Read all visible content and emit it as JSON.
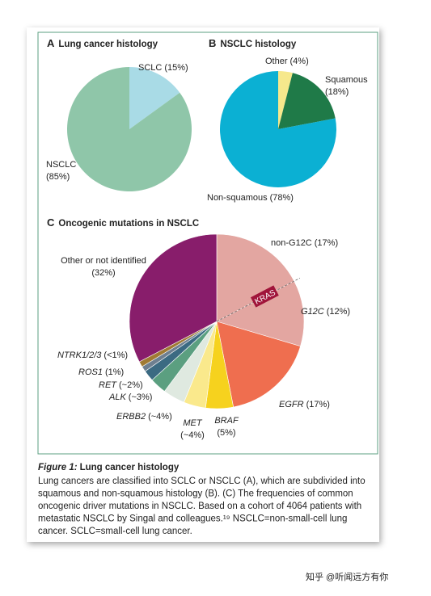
{
  "chart_data": [
    {
      "type": "pie",
      "panel": "A",
      "title": "Lung cancer histology",
      "categories": [
        "SCLC",
        "NSCLC"
      ],
      "values": [
        15,
        85
      ],
      "value_labels": [
        "(15%)",
        "(85%)"
      ],
      "colors": [
        "#a9dbe6",
        "#8fc6a9"
      ]
    },
    {
      "type": "pie",
      "panel": "B",
      "title": "NSCLC histology",
      "categories": [
        "Other",
        "Squamous",
        "Non-squamous"
      ],
      "values": [
        4,
        18,
        78
      ],
      "value_labels": [
        "(4%)",
        "(18%)",
        "(78%)"
      ],
      "colors": [
        "#f6e88c",
        "#1f7a48",
        "#0bb0d3"
      ]
    },
    {
      "type": "pie",
      "panel": "C",
      "title": "Oncogenic mutations in NSCLC",
      "categories": [
        "non-G12C",
        "G12C",
        "EGFR",
        "BRAF",
        "MET",
        "ERBB2",
        "ALK",
        "RET",
        "ROS1",
        "NTRK1/2/3",
        "Other or not identified"
      ],
      "values": [
        17,
        12,
        17,
        5,
        4,
        4,
        3,
        2,
        1,
        1,
        32
      ],
      "value_labels": [
        "(17%)",
        "(12%)",
        "(17%)",
        "(5%)",
        "(~4%)",
        "(~4%)",
        "(~3%)",
        "(~2%)",
        "(1%)",
        "(<1%)",
        "(32%)"
      ],
      "colors": [
        "#e3a6a1",
        "#e3a6a1",
        "#ef6e4f",
        "#f6d21e",
        "#fae98c",
        "#dfe9e0",
        "#5b9f80",
        "#3b6a82",
        "#6e7f90",
        "#a07a34",
        "#881d6b"
      ],
      "annotation": "KRAS"
    }
  ],
  "caption": {
    "label": "Figure 1:",
    "title": "Lung cancer histology",
    "lines": [
      "Lung cancers are classified into SCLC or NSCLC (A), which are subdivided into",
      "squamous and non-squamous histology (B). (C) The frequencies of common",
      "oncogenic driver mutations in NSCLC. Based on a cohort of 4064 patients with",
      "metastatic NSCLC by Singal and colleagues.¹⁹ NSCLC=non-small-cell lung",
      "cancer. SCLC=small-cell lung cancer."
    ]
  },
  "watermark": "知乎 @听闻远方有你"
}
